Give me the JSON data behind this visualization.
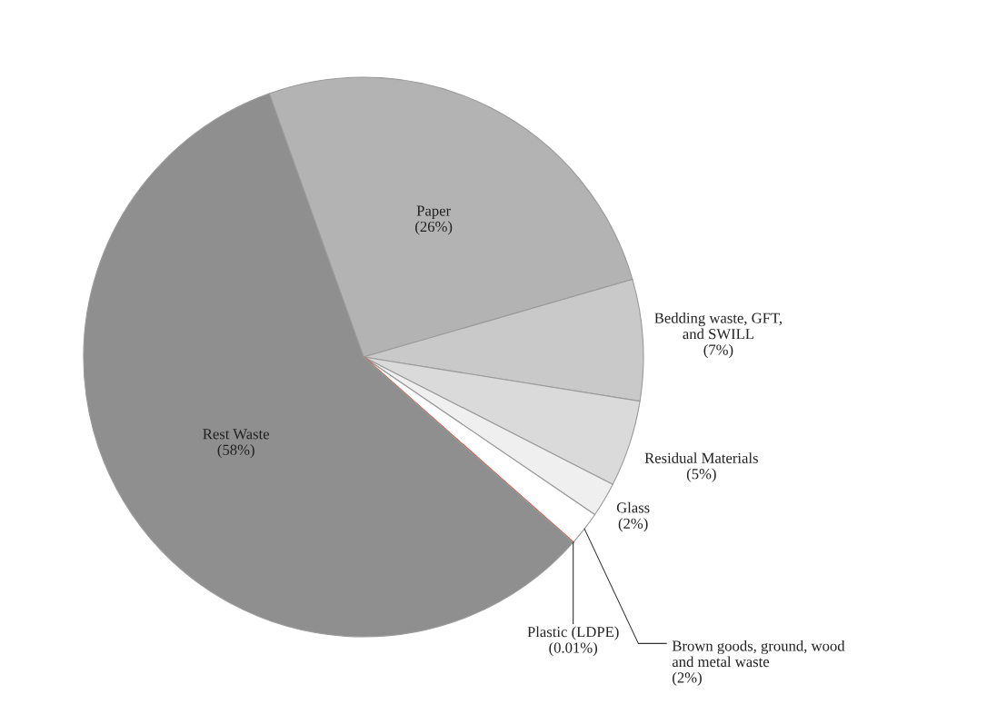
{
  "chart_data": {
    "type": "pie",
    "categories": [
      "Paper",
      "Bedding waste, GFT,\nand SWILL",
      "Residual Materials",
      "Glass",
      "Brown goods, ground, wood\nand metal waste",
      "Plastic (LDPE)",
      "Rest Waste"
    ],
    "values": [
      26,
      7,
      5,
      2,
      2,
      0.01,
      58
    ],
    "value_labels": [
      "(26%)",
      "(7%)",
      "(5%)",
      "(2%)",
      "(2%)",
      "(0.01%)",
      "(58%)"
    ],
    "colors": [
      "#b3b3b3",
      "#c9c9c9",
      "#dadada",
      "#efefef",
      "#ffffff",
      "#e8412c",
      "#8f8f8f"
    ],
    "legend": false
  }
}
